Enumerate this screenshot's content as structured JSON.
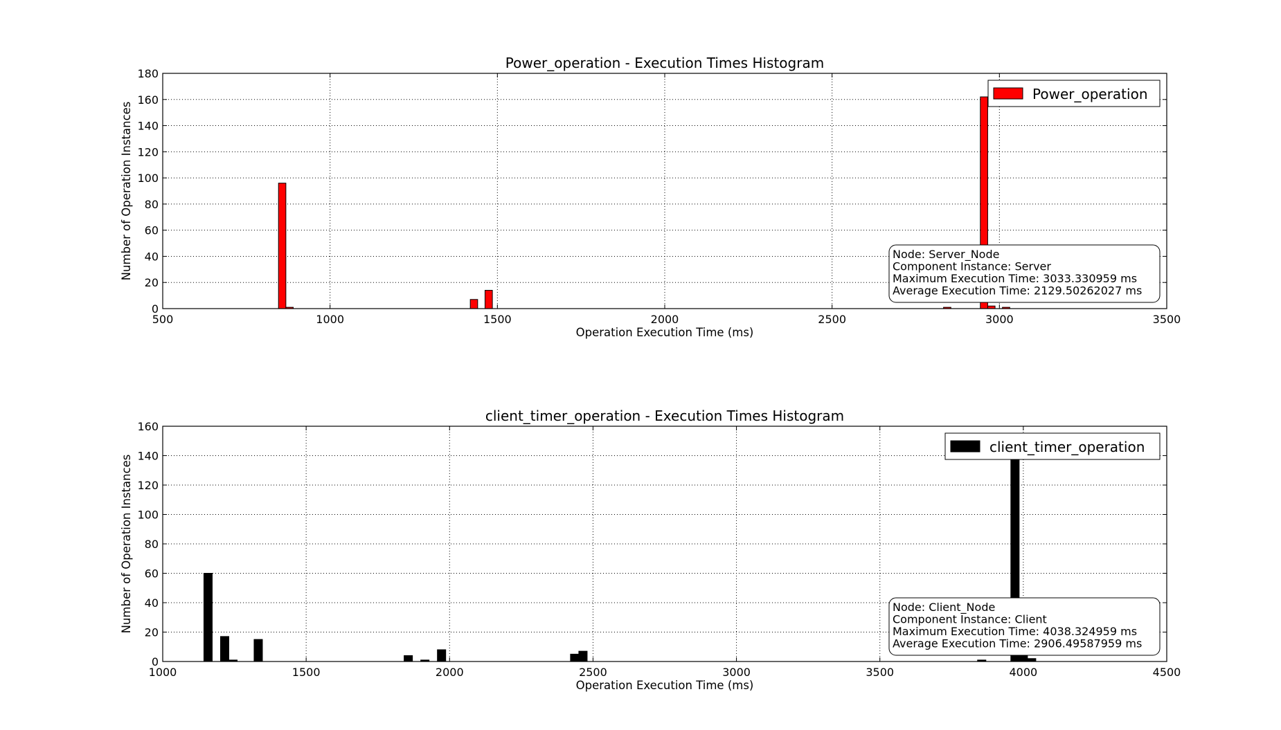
{
  "chart_data": [
    {
      "type": "bar",
      "title": "Power_operation - Execution Times Histogram",
      "xlabel": "Operation Execution Time (ms)",
      "ylabel": "Number of Operation Instances",
      "xlim": [
        500,
        3500
      ],
      "ylim": [
        0,
        180
      ],
      "xticks": [
        500,
        1000,
        1500,
        2000,
        2500,
        3000,
        3500
      ],
      "yticks": [
        0,
        20,
        40,
        60,
        80,
        100,
        120,
        140,
        160,
        180
      ],
      "grid": true,
      "legend_position": "top-right",
      "series": [
        {
          "name": "Power_operation",
          "color": "#ff0000",
          "bin_width": 22,
          "bins": [
            {
              "x": 857,
              "value": 96
            },
            {
              "x": 879,
              "value": 1
            },
            {
              "x": 1430,
              "value": 7
            },
            {
              "x": 1474,
              "value": 14
            },
            {
              "x": 2844,
              "value": 1
            },
            {
              "x": 2954,
              "value": 162
            },
            {
              "x": 2976,
              "value": 2
            },
            {
              "x": 3020,
              "value": 1
            }
          ]
        }
      ],
      "info_box": [
        "Node: Server_Node",
        "Component Instance: Server",
        "Maximum Execution Time: 3033.330959 ms",
        "Average Execution Time: 2129.50262027 ms"
      ]
    },
    {
      "type": "bar",
      "title": "client_timer_operation - Execution Times Histogram",
      "xlabel": "Operation Execution Time (ms)",
      "ylabel": "Number of Operation Instances",
      "xlim": [
        1000,
        4500
      ],
      "ylim": [
        0,
        160
      ],
      "xticks": [
        1000,
        1500,
        2000,
        2500,
        3000,
        3500,
        4000,
        4500
      ],
      "yticks": [
        0,
        20,
        40,
        60,
        80,
        100,
        120,
        140,
        160
      ],
      "grid": true,
      "legend_position": "top-right",
      "series": [
        {
          "name": "client_timer_operation",
          "color": "#000000",
          "bin_width": 29,
          "bins": [
            {
              "x": 1158,
              "value": 60
            },
            {
              "x": 1216,
              "value": 17
            },
            {
              "x": 1245,
              "value": 1
            },
            {
              "x": 1333,
              "value": 15
            },
            {
              "x": 1856,
              "value": 4
            },
            {
              "x": 1914,
              "value": 1
            },
            {
              "x": 1972,
              "value": 8
            },
            {
              "x": 2436,
              "value": 5
            },
            {
              "x": 2465,
              "value": 7
            },
            {
              "x": 3855,
              "value": 1
            },
            {
              "x": 3971,
              "value": 155
            },
            {
              "x": 4000,
              "value": 5
            },
            {
              "x": 4029,
              "value": 2
            }
          ]
        }
      ],
      "info_box": [
        "Node: Client_Node",
        "Component Instance: Client",
        "Maximum Execution Time: 4038.324959 ms",
        "Average Execution Time: 2906.49587959 ms"
      ]
    }
  ]
}
